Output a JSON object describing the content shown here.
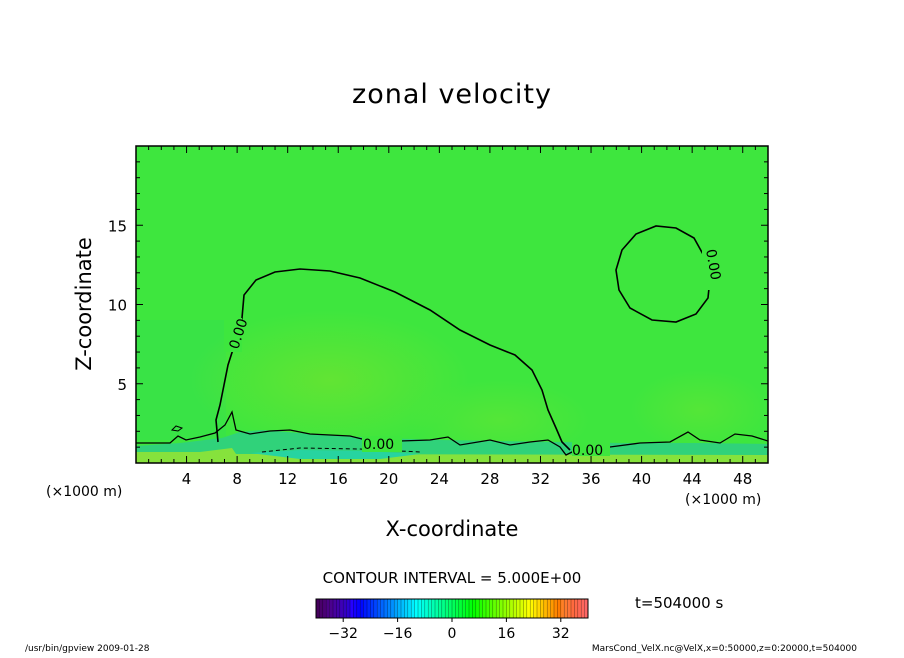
{
  "chart_data": {
    "type": "heatmap",
    "title": "zonal velocity",
    "xlabel": "X-coordinate",
    "ylabel": "Z-coordinate",
    "x_unit": "(×1000 m)",
    "y_unit": "(×1000 m)",
    "x_ticks": [
      "4",
      "8",
      "12",
      "16",
      "20",
      "24",
      "28",
      "32",
      "36",
      "40",
      "44",
      "48"
    ],
    "y_ticks": [
      "5",
      "10",
      "15"
    ],
    "xlim": [
      0,
      50
    ],
    "ylim": [
      0,
      20
    ],
    "contour_interval_text": "CONTOUR INTERVAL = 5.000E+00",
    "time_text": "t=504000 s",
    "contour_labels": [
      "0.00",
      "0.00",
      "0.00",
      "0.00"
    ],
    "colorbar": {
      "range": [
        -40,
        40
      ],
      "ticks": [
        "−32",
        "−16",
        "0",
        "16",
        "32"
      ],
      "tick_values": [
        -32,
        -16,
        0,
        16,
        32
      ]
    },
    "field_colors": {
      "background_field": "#3ee63e",
      "positive_region": "#55e838",
      "surface_layer": "#30d070",
      "bottom_band": "#88e040"
    }
  },
  "footer": {
    "left": "/usr/bin/gpview  2009-01-28",
    "right": "MarsCond_VelX.nc@VelX,x=0:50000,z=0:20000,t=504000"
  }
}
